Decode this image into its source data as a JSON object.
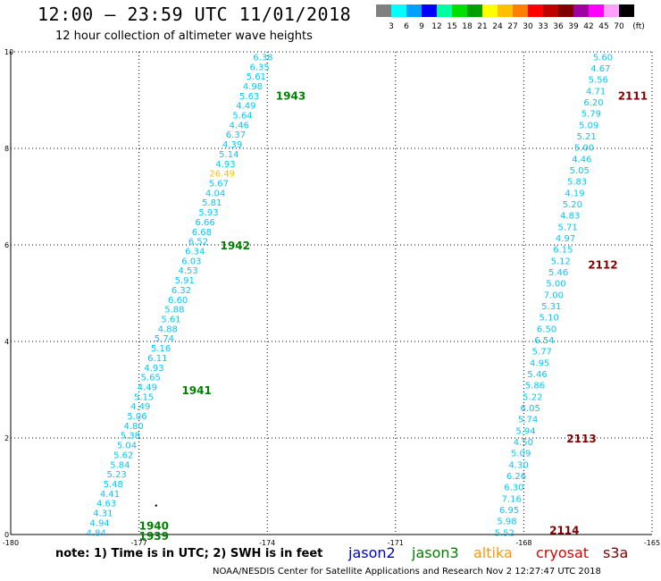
{
  "header": {
    "title": "12:00 – 23:59 UTC 11/01/2018",
    "subtitle": "12 hour collection of altimeter wave heights"
  },
  "colorbar": {
    "unit": "(ft)",
    "colors": [
      "#808080",
      "#00ffff",
      "#00a0ff",
      "#0000ff",
      "#00ffa0",
      "#00e000",
      "#00a000",
      "#ffff00",
      "#ffc000",
      "#ff8000",
      "#ff0000",
      "#c00000",
      "#800000",
      "#a000a0",
      "#ff00ff",
      "#ffa0ff",
      "#000000"
    ],
    "labels": [
      "3",
      "6",
      "9",
      "12",
      "15",
      "18",
      "21",
      "24",
      "27",
      "30",
      "33",
      "36",
      "39",
      "42",
      "45",
      "70"
    ]
  },
  "chart_data": {
    "type": "scatter",
    "xlim": [
      -180,
      -165
    ],
    "ylim": [
      0,
      10
    ],
    "xticks": [
      "-180",
      "-177",
      "-174",
      "-171",
      "-168",
      "-165"
    ],
    "yticks": [
      "0",
      "2",
      "4",
      "6",
      "8",
      "10"
    ],
    "grid": true,
    "tracks": [
      {
        "name": "west pass",
        "labels": [
          "4.84",
          "4.94",
          "4.31",
          "4.63",
          "4.41",
          "5.48",
          "5.23",
          "5.84",
          "5.62",
          "5.04",
          "5.38",
          "4.80",
          "5.06",
          "4.49",
          "5.15",
          "4.49",
          "5.65",
          "4.93",
          "6.11",
          "5.16",
          "5.74",
          "4.88",
          "5.61",
          "5.88",
          "6.60",
          "6.32",
          "5.91",
          "4.53",
          "6.03",
          "6.34",
          "6.52",
          "6.68",
          "6.66",
          "5.93",
          "5.81",
          "4.04",
          "5.67",
          "26.49",
          "4.93",
          "5.14",
          "4.39",
          "6.37",
          "4.46",
          "5.64",
          "4.49",
          "5.63",
          "4.98",
          "5.61",
          "6.35",
          "6.38"
        ],
        "start": [
          -178.0,
          0.05
        ],
        "end": [
          -174.1,
          9.9
        ]
      },
      {
        "name": "east pass",
        "labels": [
          "5.52",
          "5.98",
          "6.95",
          "7.16",
          "6.30",
          "6.26",
          "4.30",
          "5.09",
          "4.50",
          "5.94",
          "5.74",
          "6.05",
          "5.22",
          "5.86",
          "5.46",
          "4.95",
          "5.77",
          "6.54",
          "6.50",
          "5.10",
          "5.31",
          "7.00",
          "5.00",
          "5.46",
          "5.12",
          "6.15",
          "4.97",
          "5.71",
          "4.83",
          "5.20",
          "4.19",
          "5.83",
          "5.05",
          "4.46",
          "5.00",
          "5.21",
          "5.09",
          "5.79",
          "6.20",
          "4.71",
          "5.56",
          "4.67",
          "5.60"
        ],
        "start": [
          -168.45,
          0.05
        ],
        "end": [
          -166.15,
          9.9
        ]
      }
    ],
    "highlight": {
      "value": "26.49",
      "color": "#ffc000"
    },
    "point_color": "#00c8ff",
    "dot": [
      -176.6,
      0.6
    ],
    "time_labels": [
      {
        "text": "1939",
        "x": -177.0,
        "y": -0.02,
        "color": "#008000"
      },
      {
        "text": "1940",
        "x": -177.0,
        "y": 0.19,
        "color": "#008000"
      },
      {
        "text": "1941",
        "x": -176.0,
        "y": 3.0,
        "color": "#008000"
      },
      {
        "text": "1942",
        "x": -175.1,
        "y": 6.0,
        "color": "#008000"
      },
      {
        "text": "1943",
        "x": -173.8,
        "y": 9.1,
        "color": "#008000"
      },
      {
        "text": "2111",
        "x": -165.8,
        "y": 9.1,
        "color": "#800000"
      },
      {
        "text": "2112",
        "x": -166.5,
        "y": 5.6,
        "color": "#800000"
      },
      {
        "text": "2113",
        "x": -167.0,
        "y": 2.0,
        "color": "#800000"
      },
      {
        "text": "2114",
        "x": -167.4,
        "y": 0.1,
        "color": "#800000"
      }
    ]
  },
  "footer": {
    "note": "note: 1) Time is in UTC; 2) SWH is in feet",
    "legend": [
      {
        "label": "jason2",
        "color": "#0000d0",
        "left": 390
      },
      {
        "label": "jason3",
        "color": "#008000",
        "left": 461
      },
      {
        "label": "altika",
        "color": "#ff9900",
        "left": 530
      },
      {
        "label": "cryosat",
        "color": "#e00000",
        "left": 600
      },
      {
        "label": "s3a",
        "color": "#800000",
        "left": 675
      }
    ],
    "credit": "NOAA/NESDIS Center for Satellite Applications and Research    Nov  2 12:27:47 UTC 2018"
  }
}
